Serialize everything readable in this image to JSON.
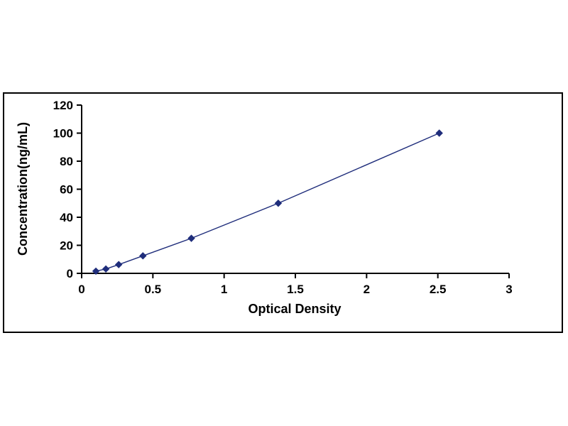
{
  "chart_data": {
    "type": "line",
    "title": "",
    "xlabel": "Optical Density",
    "ylabel": "Concentration(ng/mL)",
    "x": [
      0.1,
      0.17,
      0.26,
      0.43,
      0.77,
      1.38,
      2.51
    ],
    "y": [
      1.56,
      3.12,
      6.25,
      12.5,
      25,
      50,
      100
    ],
    "xlim": [
      0,
      3
    ],
    "ylim": [
      0,
      120
    ],
    "xticks": [
      0,
      0.5,
      1,
      1.5,
      2,
      2.5,
      3
    ],
    "xtick_labels": [
      "0",
      "0.5",
      "1",
      "1.5",
      "2",
      "2.5",
      "3"
    ],
    "yticks": [
      0,
      20,
      40,
      60,
      80,
      100,
      120
    ],
    "ytick_labels": [
      "0",
      "20",
      "40",
      "60",
      "80",
      "100",
      "120"
    ],
    "line_color": "#1F2D7B",
    "marker_color": "#1F2D7B",
    "marker_shape": "diamond",
    "axis_color": "#000000",
    "grid": false,
    "legend_position": "none"
  }
}
